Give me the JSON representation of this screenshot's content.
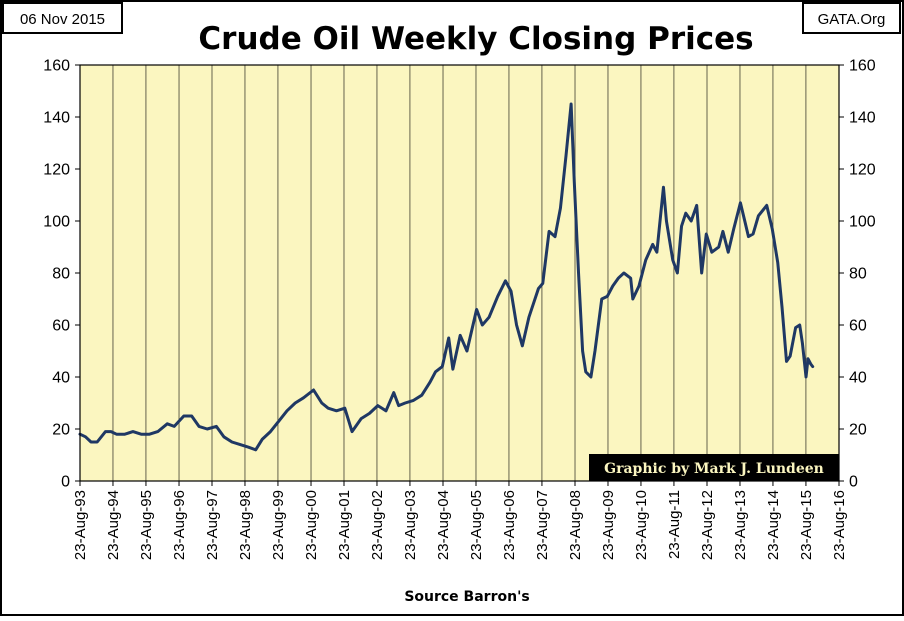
{
  "header": {
    "date_label": "06 Nov 2015",
    "source_label": "GATA.Org"
  },
  "chart_data": {
    "type": "line",
    "title": "Crude Oil Weekly Closing Prices",
    "xlabel": "Source Barron's",
    "ylabel": "",
    "ylim": [
      0,
      160
    ],
    "yticks": [
      0,
      20,
      40,
      60,
      80,
      100,
      120,
      140,
      160
    ],
    "xlim": [
      "1993-08-23",
      "2016-08-23"
    ],
    "xtick_labels": [
      "23-Aug-93",
      "23-Aug-94",
      "23-Aug-95",
      "23-Aug-96",
      "23-Aug-97",
      "23-Aug-98",
      "23-Aug-99",
      "23-Aug-00",
      "23-Aug-01",
      "23-Aug-02",
      "23-Aug-03",
      "23-Aug-04",
      "23-Aug-05",
      "23-Aug-06",
      "23-Aug-07",
      "23-Aug-08",
      "23-Aug-09",
      "23-Aug-10",
      "23-Aug-11",
      "23-Aug-12",
      "23-Aug-13",
      "23-Aug-14",
      "23-Aug-15",
      "23-Aug-16"
    ],
    "grid": {
      "vertical": true,
      "horizontal": false
    },
    "y_axis_right_mirror": true,
    "annotation": "Graphic by Mark J. Lundeen",
    "colors": {
      "plot_background": "#fbf6c0",
      "line": "#1f3864",
      "grid": "#000000",
      "annotation_bg": "#000000",
      "annotation_text": "#fbf6c0"
    },
    "series": [
      {
        "x": [
          "1993-08-23",
          "1993-10-23",
          "1993-12-23",
          "1994-03-01",
          "1994-06-01",
          "1994-08-01",
          "1994-10-01",
          "1995-01-01",
          "1995-04-01",
          "1995-07-01",
          "1995-10-01",
          "1996-01-01",
          "1996-04-15",
          "1996-07-01",
          "1996-10-15",
          "1997-01-10",
          "1997-04-01",
          "1997-07-01",
          "1997-10-10",
          "1998-01-01",
          "1998-04-01",
          "1998-07-01",
          "1998-10-01",
          "1998-12-20",
          "1999-03-01",
          "1999-06-01",
          "1999-09-01",
          "1999-12-01",
          "2000-03-01",
          "2000-06-01",
          "2000-09-20",
          "2000-12-20",
          "2001-03-01",
          "2001-06-01",
          "2001-09-01",
          "2001-11-20",
          "2002-03-01",
          "2002-06-01",
          "2002-09-01",
          "2002-12-01",
          "2003-02-25",
          "2003-04-20",
          "2003-07-01",
          "2003-10-01",
          "2004-01-01",
          "2004-04-01",
          "2004-06-01",
          "2004-08-15",
          "2004-10-25",
          "2004-12-10",
          "2005-03-01",
          "2005-05-15",
          "2005-08-30",
          "2005-11-01",
          "2006-01-15",
          "2006-04-20",
          "2006-07-15",
          "2006-09-15",
          "2006-11-15",
          "2007-01-18",
          "2007-04-01",
          "2007-07-15",
          "2007-09-01",
          "2007-11-10",
          "2008-01-15",
          "2008-03-15",
          "2008-05-15",
          "2008-07-11",
          "2008-08-15",
          "2008-10-01",
          "2008-11-15",
          "2008-12-20",
          "2009-02-15",
          "2009-04-01",
          "2009-06-15",
          "2009-08-15",
          "2009-10-15",
          "2009-12-15",
          "2010-02-15",
          "2010-05-01",
          "2010-05-25",
          "2010-08-01",
          "2010-10-15",
          "2010-12-31",
          "2011-02-15",
          "2011-04-29",
          "2011-06-01",
          "2011-08-10",
          "2011-09-30",
          "2011-11-15",
          "2012-01-01",
          "2012-03-01",
          "2012-05-01",
          "2012-06-25",
          "2012-08-15",
          "2012-10-15",
          "2012-12-31",
          "2013-02-15",
          "2013-04-15",
          "2013-06-15",
          "2013-08-28",
          "2013-10-15",
          "2013-11-25",
          "2014-01-15",
          "2014-03-15",
          "2014-06-15",
          "2014-08-15",
          "2014-10-15",
          "2014-12-01",
          "2015-01-20",
          "2015-03-01",
          "2015-05-01",
          "2015-06-15",
          "2015-07-15",
          "2015-08-24",
          "2015-09-15",
          "2015-10-15",
          "2015-11-06"
        ],
        "values": [
          18,
          17,
          15,
          15,
          19,
          19,
          18,
          18,
          19,
          18,
          18,
          19,
          22,
          21,
          25,
          25,
          21,
          20,
          21,
          17,
          15,
          14,
          13,
          12,
          16,
          19,
          23,
          27,
          30,
          32,
          35,
          30,
          28,
          27,
          28,
          19,
          24,
          26,
          29,
          27,
          34,
          29,
          30,
          31,
          33,
          38,
          42,
          44,
          55,
          43,
          56,
          50,
          66,
          60,
          63,
          71,
          77,
          73,
          60,
          52,
          63,
          74,
          76,
          96,
          94,
          105,
          125,
          145,
          115,
          80,
          50,
          42,
          40,
          50,
          70,
          71,
          75,
          78,
          80,
          78,
          70,
          75,
          85,
          91,
          88,
          113,
          100,
          85,
          80,
          98,
          103,
          100,
          106,
          80,
          95,
          88,
          90,
          96,
          88,
          97,
          107,
          100,
          94,
          95,
          102,
          106,
          97,
          84,
          67,
          46,
          48,
          59,
          60,
          53,
          40,
          47,
          45,
          44
        ]
      }
    ]
  }
}
